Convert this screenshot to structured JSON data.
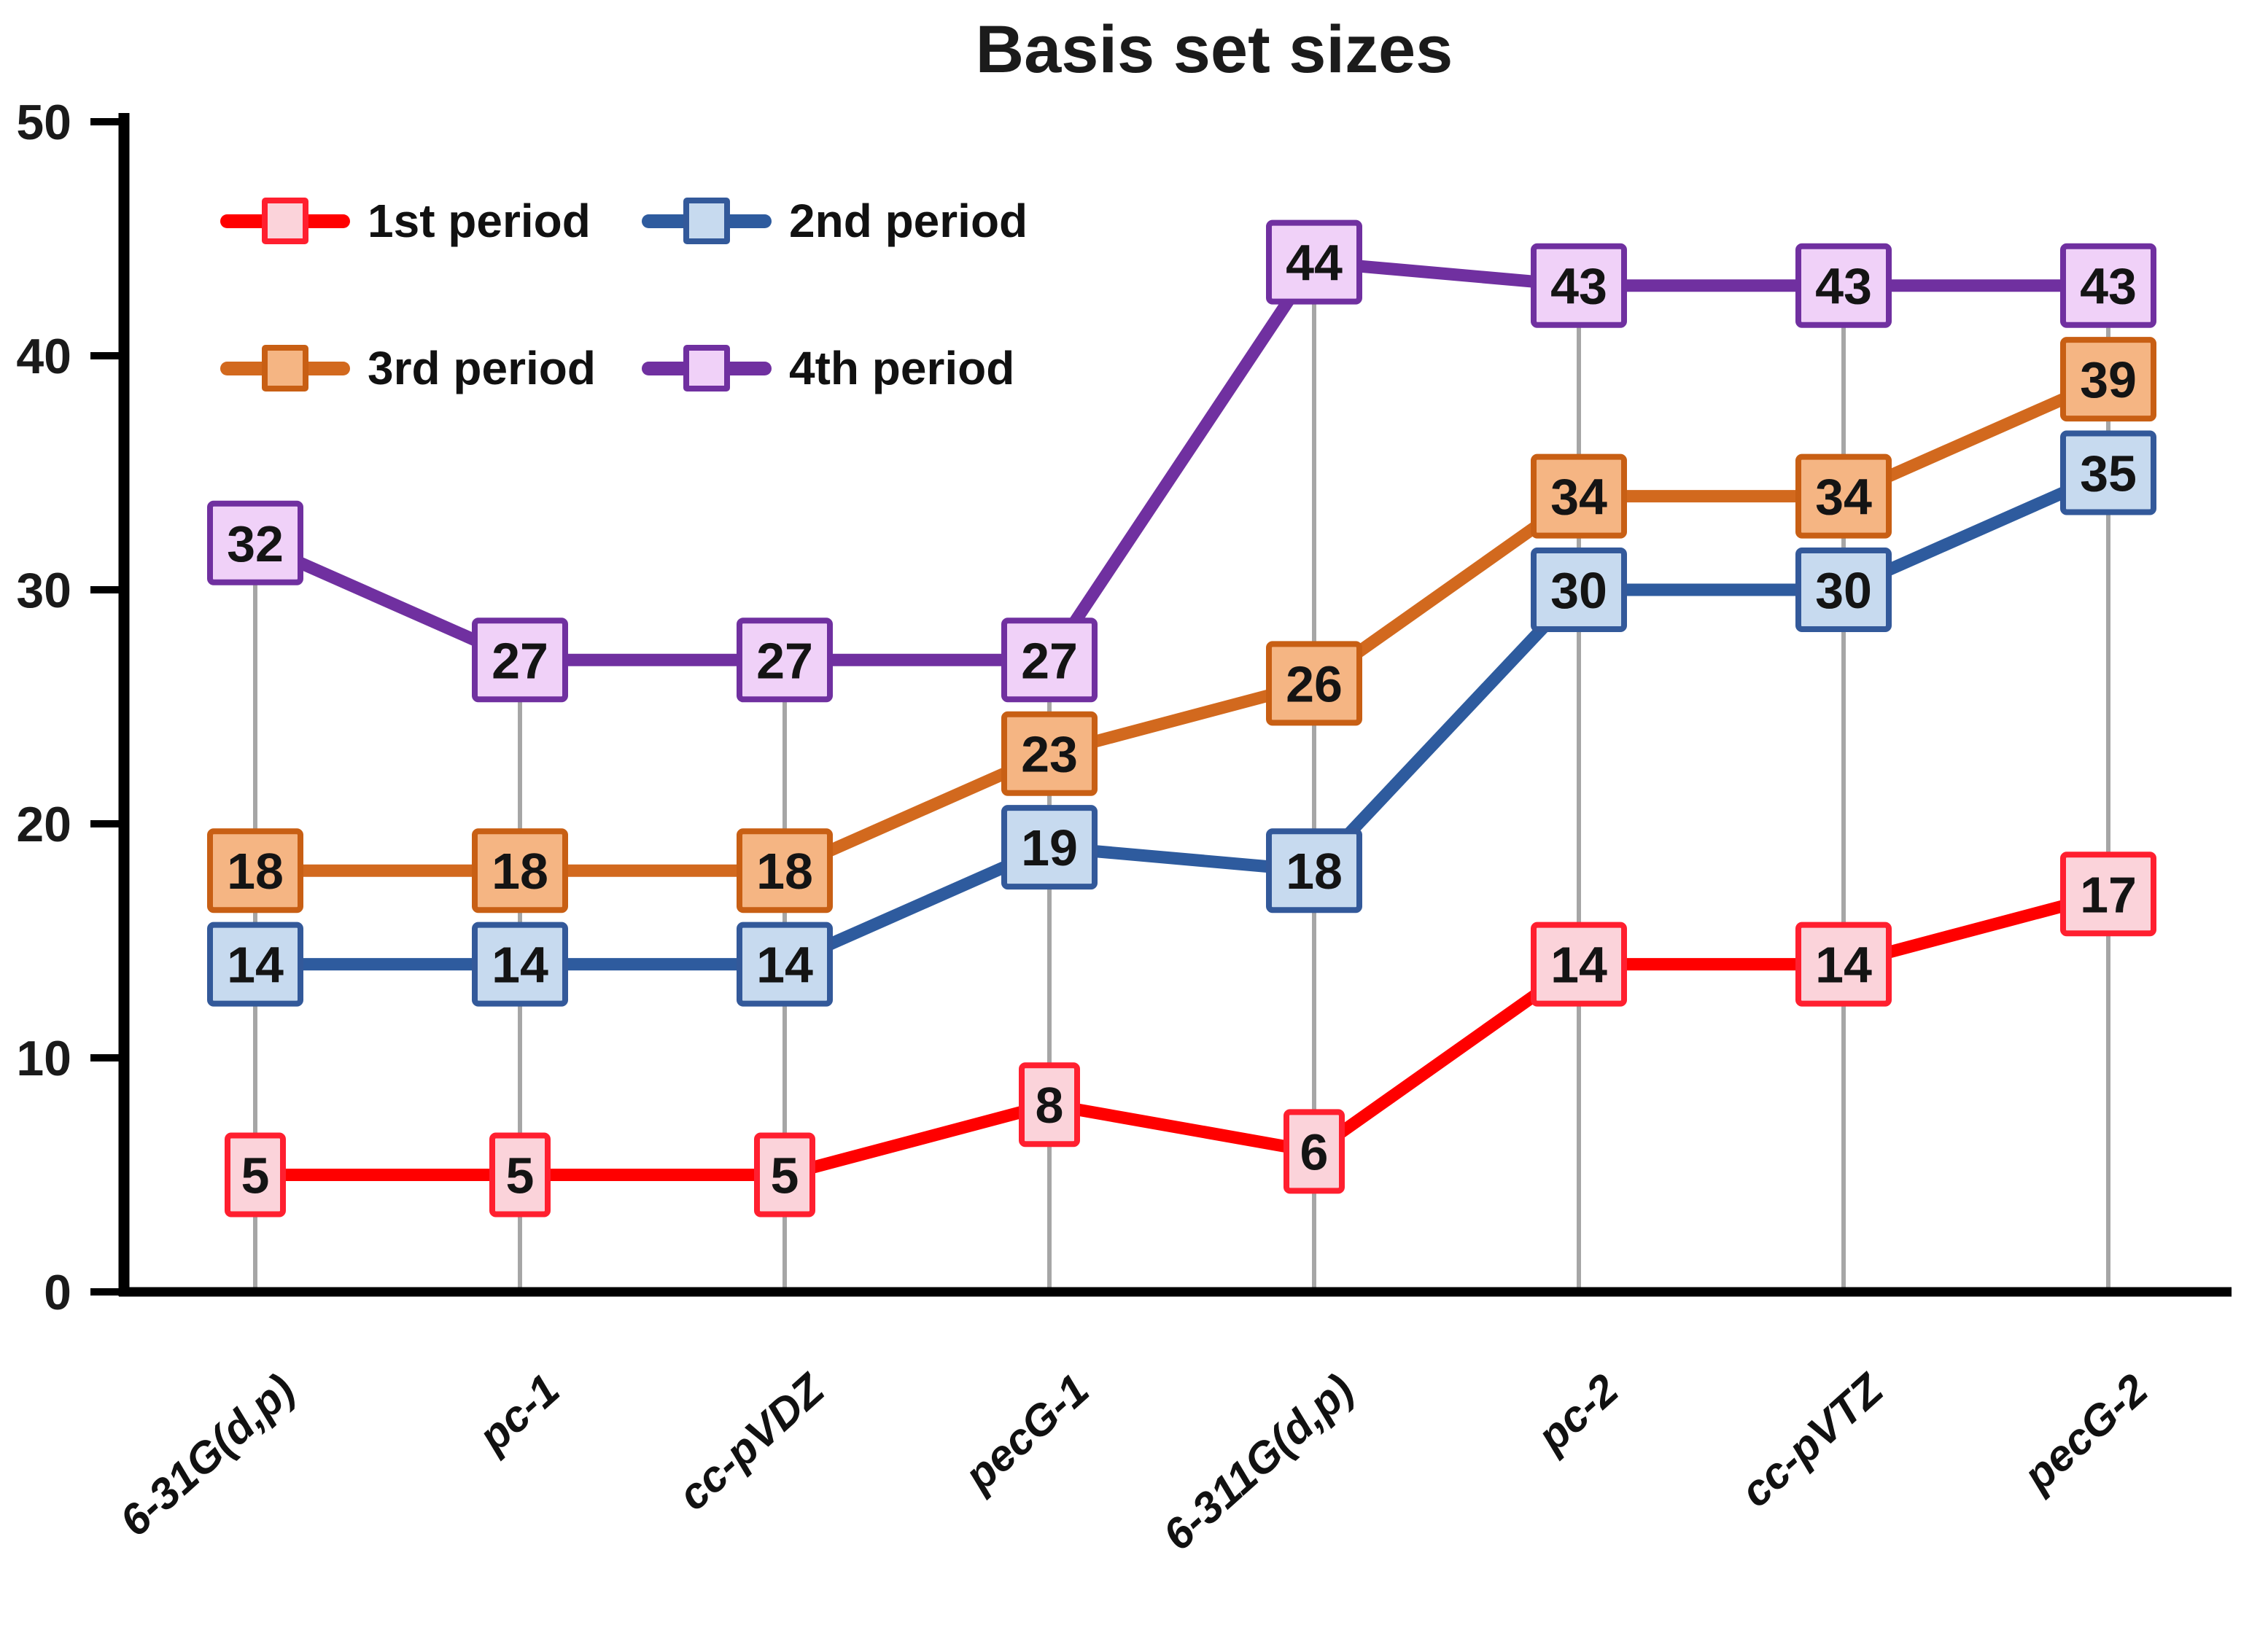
{
  "chart_data": {
    "type": "line",
    "title": "Basis set sizes",
    "categories": [
      "6-31G(d,p)",
      "pc-1",
      "cc-pVDZ",
      "pecG-1",
      "6-311G(d,p)",
      "pc-2",
      "cc-pVTZ",
      "pecG-2"
    ],
    "series": [
      {
        "name": "1st period",
        "values": [
          5,
          5,
          5,
          8,
          6,
          14,
          14,
          17
        ],
        "line_color": "#ff0000",
        "marker_fill": "#fbd3da",
        "marker_border": "#ff1f2f"
      },
      {
        "name": "2nd period",
        "values": [
          14,
          14,
          14,
          19,
          18,
          30,
          30,
          35
        ],
        "line_color": "#2e5b9e",
        "marker_fill": "#c7daef",
        "marker_border": "#33599a"
      },
      {
        "name": "3rd period",
        "values": [
          18,
          18,
          18,
          23,
          26,
          34,
          34,
          39
        ],
        "line_color": "#d2691e",
        "marker_fill": "#f5b583",
        "marker_border": "#c85f14"
      },
      {
        "name": "4th period",
        "values": [
          32,
          27,
          27,
          27,
          44,
          43,
          43,
          43
        ],
        "line_color": "#7030a0",
        "marker_fill": "#f0d1f8",
        "marker_border": "#7030a0"
      }
    ],
    "xlabel": "",
    "ylabel": "",
    "ylim": [
      0,
      50
    ],
    "y_ticks": [
      0,
      10,
      20,
      30,
      40,
      50
    ],
    "grid": "vertical gray droplines per category",
    "legend_position": "top-left inside plot, 2 columns x 2 rows",
    "value_labels": "shown in colored boxes at each data point",
    "colors": {
      "axis": "#000000",
      "dropline": "#a6a6a6",
      "tick_label": "#1a1a1a",
      "value_label": "#141414",
      "title": "#1b1b1b",
      "category_label": "#111111",
      "background": "#ffffff"
    }
  }
}
